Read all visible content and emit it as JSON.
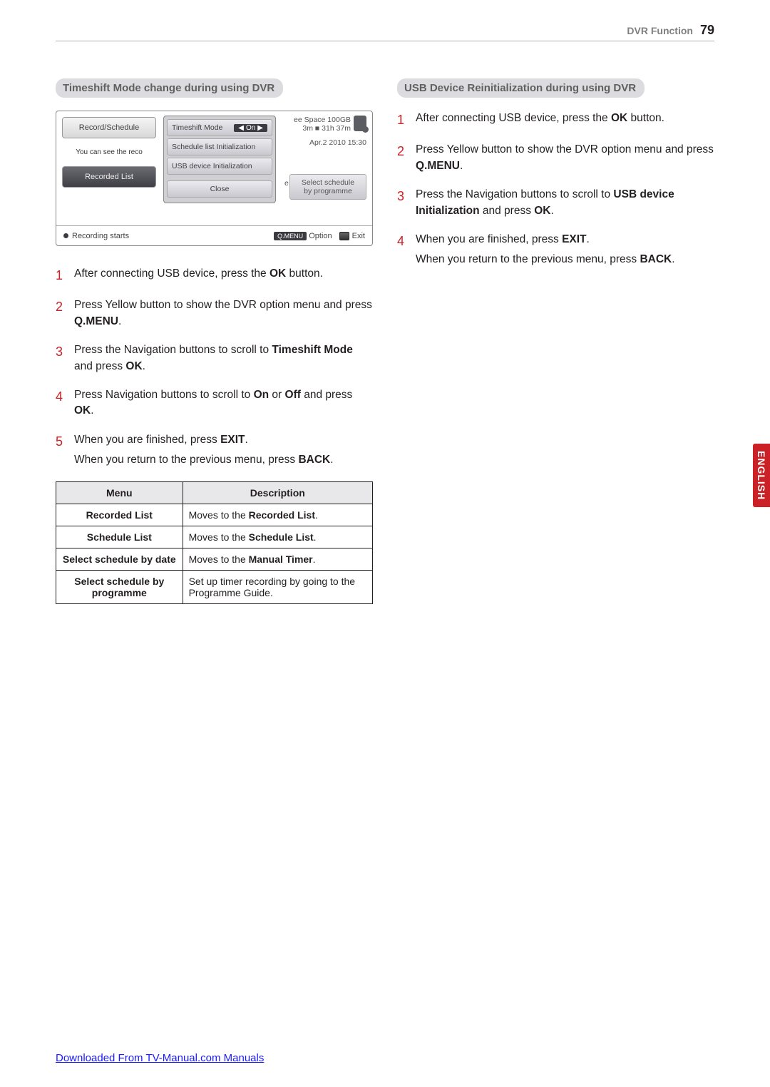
{
  "header": {
    "section": "DVR Function",
    "page": "79"
  },
  "left": {
    "title": "Timeshift Mode change during using DVR",
    "dvr": {
      "tab1": "Record/Schedule",
      "tab_note": "You can see the reco",
      "tab2": "Recorded List",
      "popup_timeshift": "Timeshift Mode",
      "popup_on": "On",
      "popup_row2": "Schedule list Initialization",
      "popup_row3": "USB device Initialization",
      "popup_close": "Close",
      "usb_line1": "ee Space 100GB",
      "usb_line2": "3m ■ 31h 37m",
      "date": "Apr.2 2010 15:30",
      "sel_box_l1": "Select schedule",
      "sel_box_l2": "by programme",
      "sel_box_e": "e",
      "footer_rec": "Recording starts",
      "footer_q": "Q.MENU",
      "footer_opt": "Option",
      "footer_exit": "Exit"
    },
    "steps": [
      {
        "n": "1",
        "t": "After connecting USB device, press the <b>OK</b> button."
      },
      {
        "n": "2",
        "t": "Press Yellow button to show the DVR option menu and press <b>Q.MENU</b>."
      },
      {
        "n": "3",
        "t": "Press the Navigation buttons to scroll to <b>Timeshift Mode</b> and press <b>OK</b>."
      },
      {
        "n": "4",
        "t": "Press Navigation buttons to scroll to <b>On</b> or <b>Off</b> and press <b>OK</b>."
      },
      {
        "n": "5",
        "t": "When you are finished, press <b>EXIT</b>.",
        "sub": "When you return to the previous menu, press <b>BACK</b>."
      }
    ],
    "table": {
      "head_menu": "Menu",
      "head_desc": "Description",
      "rows": [
        {
          "m": "Recorded List",
          "d": "Moves to the <b>Recorded List</b>."
        },
        {
          "m": "Schedule List",
          "d": "Moves to the <b>Schedule List</b>."
        },
        {
          "m": "Select schedule by date",
          "d": "Moves to the <b>Manual Timer</b>."
        },
        {
          "m": "Select schedule by programme",
          "d": "Set up timer recording by going to the Programme Guide."
        }
      ]
    }
  },
  "right": {
    "title": "USB Device Reinitialization during using DVR",
    "steps": [
      {
        "n": "1",
        "t": "After connecting USB device, press the <b>OK</b> button."
      },
      {
        "n": "2",
        "t": "Press Yellow button to show the DVR option menu and press <b>Q.MENU</b>."
      },
      {
        "n": "3",
        "t": "Press the Navigation buttons to scroll to <b>USB device Initialization</b> and press <b>OK</b>."
      },
      {
        "n": "4",
        "t": "When you are finished, press <b>EXIT</b>.",
        "sub": "When you return to the previous menu, press <b>BACK</b>."
      }
    ]
  },
  "lang": "ENGLISH",
  "footer_link": "Downloaded From TV-Manual.com Manuals",
  "colors": {
    "accent": "#cb2026",
    "pill_bg": "#dcdbdf",
    "pill_text": "#606060"
  }
}
